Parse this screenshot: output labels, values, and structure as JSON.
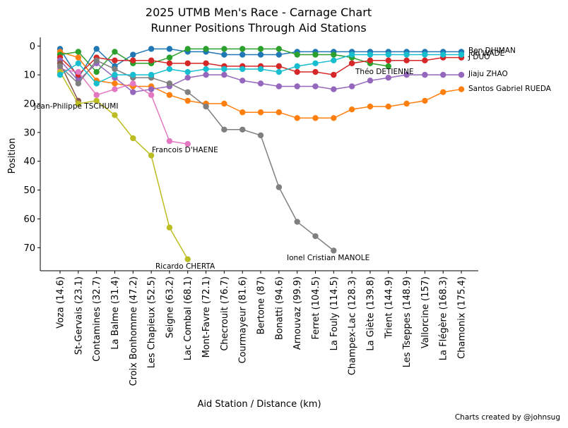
{
  "chart_data": {
    "type": "line",
    "title": "2025 UTMB Men's Race - Carnage Chart",
    "subtitle": "Runner Positions Through Aid Stations",
    "xlabel": "Aid Station / Distance (km)",
    "ylabel": "Position",
    "ylim": [
      78,
      -3
    ],
    "y_ticks": [
      0,
      10,
      20,
      30,
      40,
      50,
      60,
      70
    ],
    "y_inverted": true,
    "categories": [
      "Voza (14.6)",
      "St-Gervais (23.1)",
      "Contamines (32.7)",
      "La Balme (31.4)",
      "Croix Bonhomme (47.2)",
      "Les Chapieux (52.5)",
      "Seigne (63.2)",
      "Lac Combal (68.1)",
      "Mont-Favre (72.1)",
      "Checrouit (76.7)",
      "Courmayeur (81.6)",
      "Bertone (87)",
      "Bonatti (94.6)",
      "Arnouvaz (99.9)",
      "Ferret (104.5)",
      "La Fouly (114.5)",
      "Champex-Lac (128.3)",
      "La Giète (139.8)",
      "Trient (144.9)",
      "Les Tseppes (148.9)",
      "Vallorcine (157)",
      "La Flégère (168.3)",
      "Chamonix (175.4)"
    ],
    "series": [
      {
        "name": "Ben DHIMAN",
        "color": "#1f77b4",
        "values": [
          1,
          11,
          1,
          7,
          3,
          1,
          1,
          2,
          2,
          3,
          3,
          3,
          3,
          2,
          2,
          2,
          2,
          2,
          2,
          2,
          2,
          2,
          2
        ]
      },
      {
        "name": "Santos Gabriel RUEDA",
        "color": "#ff7f0e",
        "values": [
          2,
          4,
          12,
          13,
          14,
          14,
          17,
          19,
          20,
          20,
          23,
          23,
          23,
          25,
          25,
          25,
          22,
          21,
          21,
          20,
          19,
          16,
          15
        ]
      },
      {
        "name": "J DUO",
        "color": "#2ca02c",
        "values": [
          3,
          2,
          9,
          2,
          6,
          6,
          4,
          1,
          1,
          1,
          1,
          1,
          1,
          3,
          3,
          3,
          4,
          6,
          7,
          null,
          null,
          null,
          null
        ]
      },
      {
        "name": "Théo DETIENNE",
        "color": "#d62728",
        "values": [
          4,
          10,
          4,
          5,
          5,
          5,
          6,
          6,
          6,
          7,
          7,
          7,
          7,
          9,
          9,
          10,
          6,
          5,
          5,
          5,
          5,
          4,
          4
        ]
      },
      {
        "name": "Jiaju ZHAO",
        "color": "#9467bd",
        "values": [
          5,
          12,
          6,
          11,
          16,
          15,
          14,
          11,
          10,
          10,
          12,
          13,
          14,
          14,
          14,
          15,
          14,
          12,
          11,
          10,
          10,
          10,
          10
        ]
      },
      {
        "name": "Jean-Philippe TSCHUMI",
        "color": "#8c564b",
        "values": [
          6,
          19,
          null,
          null,
          null,
          null,
          null,
          null,
          null,
          null,
          null,
          null,
          null,
          null,
          null,
          null,
          null,
          null,
          null,
          null,
          null,
          null,
          null
        ]
      },
      {
        "name": "Francois D'HAENE",
        "color": "#e377c2",
        "values": [
          8,
          9,
          17,
          15,
          13,
          17,
          33,
          34,
          null,
          null,
          null,
          null,
          null,
          null,
          null,
          null,
          null,
          null,
          null,
          null,
          null,
          null,
          null
        ]
      },
      {
        "name": "Ionel Cristian MANOLE",
        "color": "#7f7f7f",
        "values": [
          7,
          13,
          5,
          8,
          11,
          11,
          13,
          16,
          21,
          29,
          29,
          31,
          49,
          61,
          66,
          71,
          null,
          null,
          null,
          null,
          null,
          null,
          null
        ]
      },
      {
        "name": "Ricardo CHERTA",
        "color": "#bcbd22",
        "values": [
          9,
          20,
          19,
          24,
          32,
          38,
          63,
          74,
          null,
          null,
          null,
          null,
          null,
          null,
          null,
          null,
          null,
          null,
          null,
          null,
          null,
          null,
          null
        ]
      },
      {
        "name": "Jon WADE",
        "color": "#17becf",
        "values": [
          10,
          6,
          13,
          10,
          10,
          10,
          8,
          9,
          8,
          8,
          8,
          8,
          9,
          7,
          6,
          5,
          3,
          3,
          3,
          3,
          3,
          3,
          3
        ]
      }
    ],
    "end_labels": [
      {
        "text": "Ben DHIMAN",
        "series": 0
      },
      {
        "text": "Jon WADE",
        "series": 9
      },
      {
        "text": "J DUO",
        "series": 2
      },
      {
        "text": "Théo DETIENNE",
        "series": 3
      },
      {
        "text": "Jiaju ZHAO",
        "series": 4
      },
      {
        "text": "Santos Gabriel RUEDA",
        "series": 1
      },
      {
        "text": "Jean-Philippe TSCHUMI",
        "series": 5
      },
      {
        "text": "Francois D'HAENE",
        "series": 6
      },
      {
        "text": "Ionel Cristian MANOLE",
        "series": 7
      },
      {
        "text": "Ricardo CHERTA",
        "series": 8
      }
    ],
    "grid": false,
    "credit": "Charts created by @johnsug"
  }
}
